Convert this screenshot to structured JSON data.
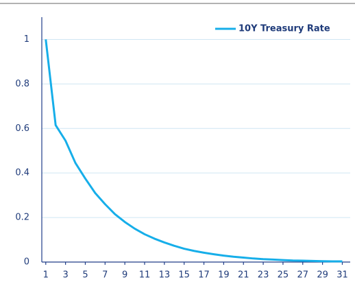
{
  "chart_data": {
    "type": "line",
    "x": [
      1,
      2,
      3,
      4,
      5,
      6,
      7,
      8,
      9,
      10,
      11,
      12,
      13,
      14,
      15,
      16,
      17,
      18,
      19,
      20,
      21,
      22,
      23,
      24,
      25,
      26,
      27,
      28,
      29,
      30,
      31
    ],
    "series": [
      {
        "name": "10Y Treasury Rate",
        "color": "#16aee9",
        "values": [
          1,
          0.615,
          0.545,
          0.445,
          0.375,
          0.31,
          0.26,
          0.215,
          0.18,
          0.15,
          0.125,
          0.105,
          0.088,
          0.073,
          0.06,
          0.05,
          0.042,
          0.035,
          0.029,
          0.024,
          0.02,
          0.016,
          0.013,
          0.011,
          0.009,
          0.007,
          0.006,
          0.005,
          0.004,
          0.003,
          0.003
        ]
      }
    ],
    "xlim": [
      0.6,
      31.8
    ],
    "xticks": [
      1,
      3,
      5,
      7,
      9,
      11,
      13,
      15,
      17,
      19,
      21,
      23,
      25,
      27,
      29,
      31
    ],
    "ylim": [
      0,
      1.1
    ],
    "yticks": [
      0,
      0.2,
      0.4,
      0.6,
      0.8,
      1
    ],
    "grid": true,
    "legend": "upper right"
  }
}
